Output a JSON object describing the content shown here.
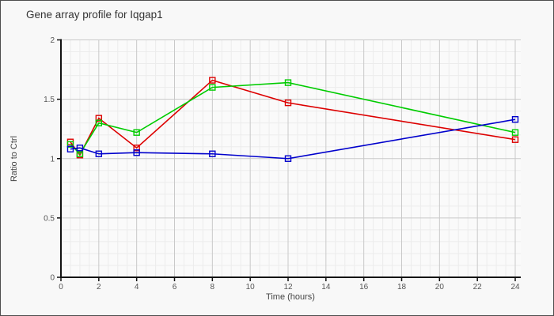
{
  "window": {
    "background": "#f8f8f8",
    "border_color": "#4d4d4d",
    "plot_background": "#fafafa",
    "grid_minor_color": "#ececec",
    "grid_major_color": "#c9c9c9",
    "axis_color": "#111111"
  },
  "title": "Gene array profile for Iqgap1",
  "chart_data": {
    "type": "line",
    "title": "Gene array profile for Iqgap1",
    "xlabel": "Time (hours)",
    "ylabel": "Ratio to Ctrl",
    "xlim": [
      0,
      24.3
    ],
    "ylim": [
      0,
      2
    ],
    "x_major_ticks": [
      0,
      2,
      4,
      6,
      8,
      10,
      12,
      14,
      16,
      18,
      20,
      22,
      24
    ],
    "y_major_ticks": [
      0,
      0.5,
      1,
      1.5,
      2
    ],
    "x_minor_step": 0.5,
    "y_minor_step": 0.1,
    "grid": true,
    "legend_position": "none",
    "marker": "open-square",
    "x": [
      0.5,
      1,
      2,
      4,
      8,
      12,
      24
    ],
    "series": [
      {
        "name": "red",
        "color": "#dd0000",
        "values": [
          1.14,
          1.03,
          1.34,
          1.09,
          1.66,
          1.47,
          1.16
        ]
      },
      {
        "name": "green",
        "color": "#00cc00",
        "values": [
          1.12,
          1.04,
          1.3,
          1.22,
          1.6,
          1.64,
          1.22
        ]
      },
      {
        "name": "blue",
        "color": "#0000cc",
        "values": [
          1.08,
          1.09,
          1.04,
          1.05,
          1.04,
          1.0,
          1.33
        ]
      }
    ]
  }
}
